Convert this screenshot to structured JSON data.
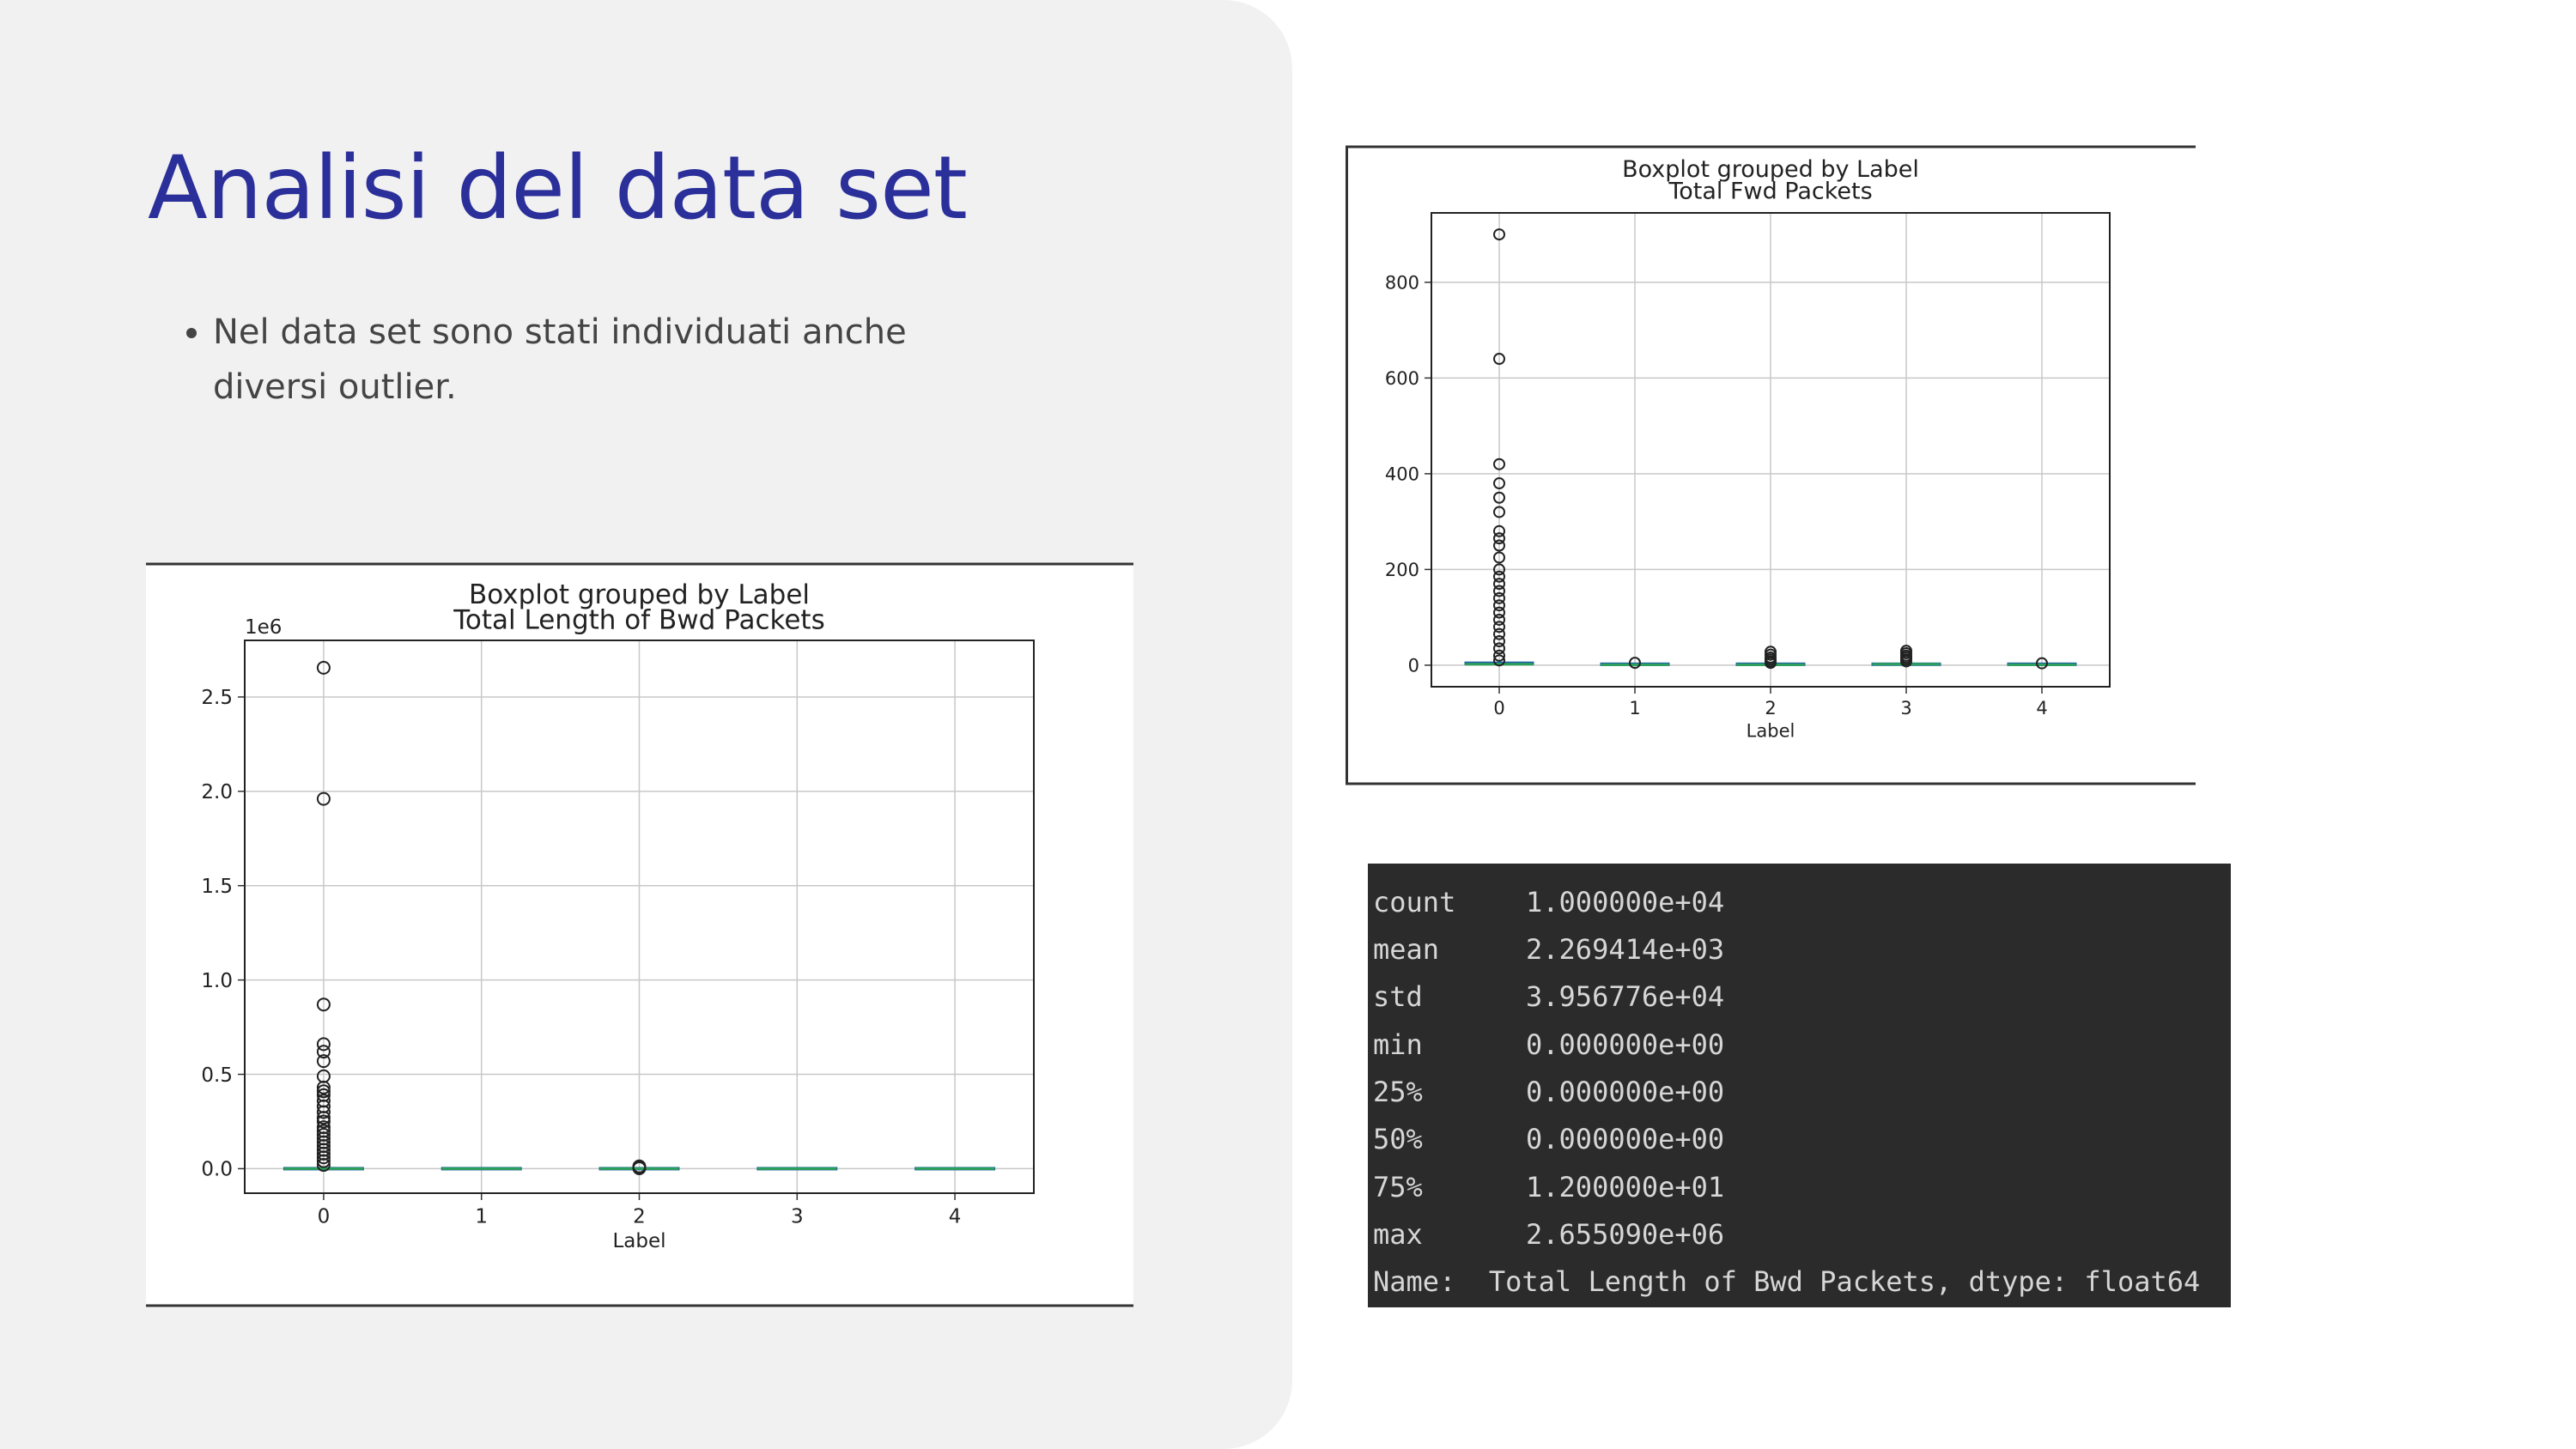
{
  "slide": {
    "title": "Analisi del data set",
    "bullets": [
      "Nel data set sono stati individuati anche diversi outlier."
    ]
  },
  "chart_data": [
    {
      "type": "boxplot",
      "title": "Boxplot grouped by Label",
      "subtitle": "Total Length of Bwd Packets",
      "xlabel": "Label",
      "ylabel": "",
      "categories": [
        "0",
        "1",
        "2",
        "3",
        "4"
      ],
      "y_scale_label": "1e6",
      "ylim": [
        -0.13,
        2.8
      ],
      "yticks": [
        0.0,
        0.5,
        1.0,
        1.5,
        2.0,
        2.5
      ],
      "ytick_labels": [
        "0.0",
        "0.5",
        "1.0",
        "1.5",
        "2.0",
        "2.5"
      ],
      "grid": true,
      "box_color": "#2ca05a",
      "boxes": [
        {
          "category": "0",
          "q1": 0,
          "median": 0,
          "q3": 1e-05,
          "whisker_low": 0,
          "whisker_high": 3e-05
        },
        {
          "category": "1",
          "q1": 0,
          "median": 0,
          "q3": 0,
          "whisker_low": 0,
          "whisker_high": 0
        },
        {
          "category": "2",
          "q1": 0,
          "median": 0,
          "q3": 0,
          "whisker_low": 0,
          "whisker_high": 0
        },
        {
          "category": "3",
          "q1": 0,
          "median": 0,
          "q3": 0,
          "whisker_low": 0,
          "whisker_high": 0
        },
        {
          "category": "4",
          "q1": 0,
          "median": 0,
          "q3": 0,
          "whisker_low": 0,
          "whisker_high": 0
        }
      ],
      "outliers": [
        {
          "category": "0",
          "values": [
            2.655,
            1.96,
            0.87,
            0.66,
            0.62,
            0.57,
            0.49,
            0.43,
            0.41,
            0.39,
            0.36,
            0.33,
            0.3,
            0.27,
            0.25,
            0.22,
            0.2,
            0.18,
            0.16,
            0.14,
            0.12,
            0.1,
            0.08,
            0.06,
            0.04,
            0.02
          ]
        },
        {
          "category": "2",
          "values": [
            0.012,
            0.008,
            0.005,
            0.002
          ]
        }
      ]
    },
    {
      "type": "boxplot",
      "title": "Boxplot grouped by Label",
      "subtitle": "Total Fwd Packets",
      "xlabel": "Label",
      "ylabel": "",
      "categories": [
        "0",
        "1",
        "2",
        "3",
        "4"
      ],
      "ylim": [
        -45,
        945
      ],
      "yticks": [
        0,
        200,
        400,
        600,
        800
      ],
      "ytick_labels": [
        "0",
        "200",
        "400",
        "600",
        "800"
      ],
      "grid": true,
      "box_color": "#2ca05a",
      "boxes": [
        {
          "category": "0",
          "q1": 1,
          "median": 2,
          "q3": 4,
          "whisker_low": 1,
          "whisker_high": 8
        },
        {
          "category": "1",
          "q1": 1,
          "median": 1,
          "q3": 2,
          "whisker_low": 1,
          "whisker_high": 2
        },
        {
          "category": "2",
          "q1": 1,
          "median": 1,
          "q3": 2,
          "whisker_low": 1,
          "whisker_high": 3
        },
        {
          "category": "3",
          "q1": 1,
          "median": 2,
          "q3": 2,
          "whisker_low": 1,
          "whisker_high": 4
        },
        {
          "category": "4",
          "q1": 1,
          "median": 1,
          "q3": 2,
          "whisker_low": 1,
          "whisker_high": 2
        }
      ],
      "outliers": [
        {
          "category": "0",
          "values": [
            900,
            640,
            420,
            380,
            350,
            320,
            280,
            265,
            250,
            225,
            200,
            185,
            170,
            155,
            140,
            125,
            110,
            95,
            80,
            65,
            50,
            35,
            20,
            10
          ]
        },
        {
          "category": "1",
          "values": [
            5
          ]
        },
        {
          "category": "2",
          "values": [
            28,
            22,
            16,
            12,
            8,
            5
          ]
        },
        {
          "category": "3",
          "values": [
            30,
            25,
            20,
            16,
            12,
            8
          ]
        },
        {
          "category": "4",
          "values": [
            4
          ]
        }
      ]
    }
  ],
  "describe_output": {
    "rows": [
      {
        "key": "count",
        "value": "1.000000e+04"
      },
      {
        "key": "mean",
        "value": "2.269414e+03"
      },
      {
        "key": "std",
        "value": "3.956776e+04"
      },
      {
        "key": "min",
        "value": "0.000000e+00"
      },
      {
        "key": "25%",
        "value": "0.000000e+00"
      },
      {
        "key": "50%",
        "value": "0.000000e+00"
      },
      {
        "key": "75%",
        "value": "1.200000e+01"
      },
      {
        "key": "max",
        "value": "2.655090e+06"
      }
    ],
    "footer_key": "Name:",
    "footer_value": "Total Length of Bwd Packets, dtype: float64"
  }
}
